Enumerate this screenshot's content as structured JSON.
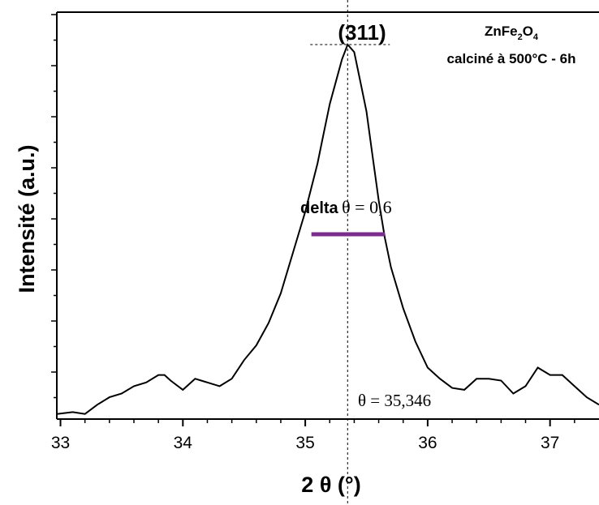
{
  "chart_data": {
    "type": "line",
    "xlabel": "2 θ (°)",
    "ylabel": "Intensité (a.u.)",
    "xlim": [
      32.97,
      37.4
    ],
    "ylim": [
      0,
      1
    ],
    "x_ticks": [
      "33",
      "34",
      "35",
      "36",
      "37"
    ],
    "x_tick_values": [
      33,
      34,
      35,
      36,
      37
    ],
    "y_ticks_labeled": false,
    "series": [
      {
        "x": [
          32.97,
          33.1,
          33.2,
          33.3,
          33.4,
          33.5,
          33.6,
          33.7,
          33.8,
          33.85,
          33.9,
          34.0,
          34.1,
          34.15,
          34.2,
          34.3,
          34.4,
          34.5,
          34.6,
          34.7,
          34.8,
          34.9,
          35.0,
          35.1,
          35.15,
          35.2,
          35.25,
          35.3,
          35.346,
          35.4,
          35.45,
          35.5,
          35.55,
          35.6,
          35.65,
          35.7,
          35.8,
          35.9,
          36.0,
          36.1,
          36.2,
          36.3,
          36.4,
          36.5,
          36.6,
          36.7,
          36.8,
          36.9,
          37.0,
          37.1,
          37.2,
          37.3,
          37.4
        ],
        "y": [
          0.005,
          0.01,
          0.005,
          0.03,
          0.05,
          0.06,
          0.08,
          0.09,
          0.11,
          0.11,
          0.095,
          0.07,
          0.1,
          0.095,
          0.09,
          0.08,
          0.1,
          0.15,
          0.19,
          0.25,
          0.33,
          0.44,
          0.55,
          0.68,
          0.76,
          0.84,
          0.9,
          0.96,
          1.0,
          0.98,
          0.9,
          0.82,
          0.7,
          0.58,
          0.48,
          0.4,
          0.29,
          0.2,
          0.13,
          0.1,
          0.075,
          0.07,
          0.1,
          0.1,
          0.095,
          0.06,
          0.08,
          0.13,
          0.11,
          0.11,
          0.08,
          0.05,
          0.03
        ]
      }
    ],
    "annotations": {
      "peak_label": "(311)",
      "sample_formula": [
        "ZnFe",
        "2",
        "O",
        "4"
      ],
      "sample_condition": "calciné à 500°C - 6h",
      "delta_label_sans": "delta",
      "delta_label_serif": "θ = 0,6",
      "center_label": "θ = 35,346",
      "center_x": 35.346,
      "fwhm_x": [
        35.05,
        35.65
      ],
      "fwhm_y": 0.5,
      "fwhm_color": "#7b2d8e"
    }
  }
}
